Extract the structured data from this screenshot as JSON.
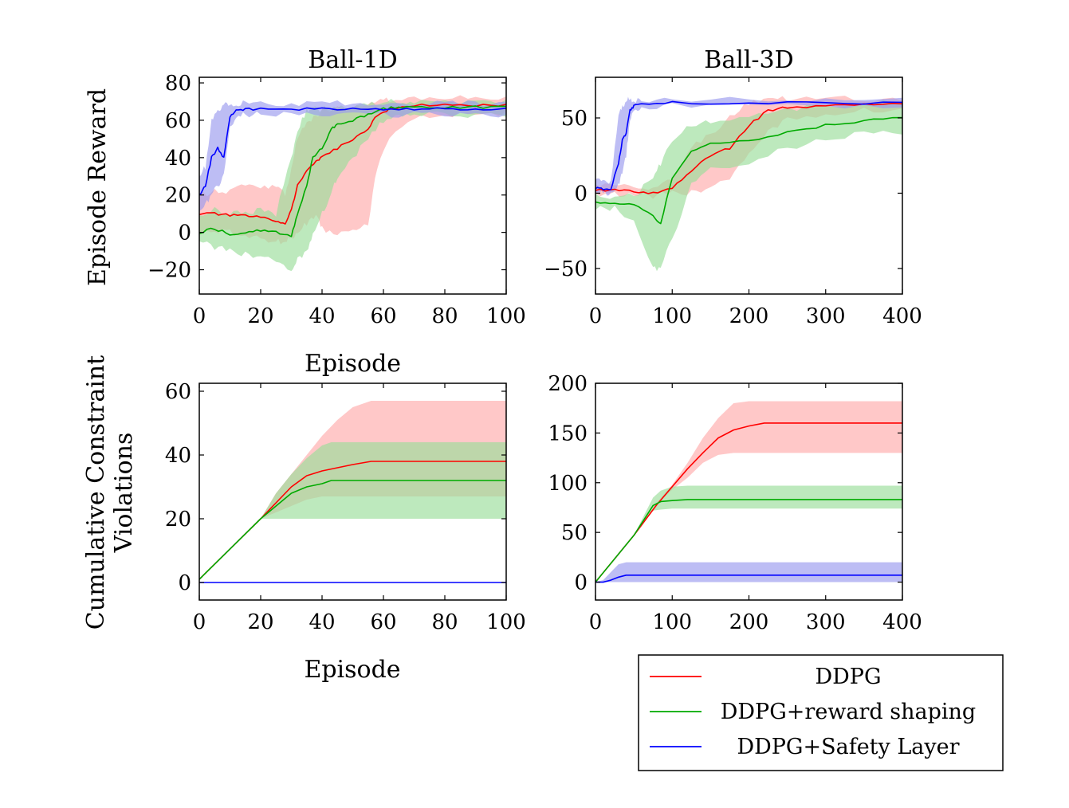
{
  "figure": {
    "ylabel_top": "Episode Reward",
    "ylabel_bottom_line1": "Cumulative Constraint",
    "ylabel_bottom_line2": "Violations",
    "xlabel_top": "Episode",
    "xlabel_bottom": "Episode"
  },
  "colors": {
    "DDPG": "#ff0000",
    "DDPG+reward shaping": "#00aa00",
    "DDPG+Safety Layer": "#0000ff",
    "DDPG_band": "#ffaaaa",
    "DDPG+reward shaping_band": "#99dd99",
    "DDPG+Safety Layer_band": "#9999ee"
  },
  "legend": {
    "placement": "bottom-right",
    "entries": [
      "DDPG",
      "DDPG+reward shaping",
      "DDPG+Safety Layer"
    ]
  },
  "chart_data": [
    {
      "id": "ball1d-reward",
      "type": "line",
      "title": "Ball-1D",
      "xlabel": "",
      "ylabel": "Episode Reward",
      "xlim": [
        0,
        100
      ],
      "ylim": [
        -33,
        83
      ],
      "xticks": [
        0,
        20,
        40,
        60,
        80,
        100
      ],
      "yticks": [
        -20,
        0,
        20,
        40,
        60,
        80
      ],
      "series": [
        {
          "name": "DDPG",
          "x": [
            0,
            5,
            10,
            15,
            20,
            25,
            28,
            30,
            32,
            35,
            38,
            40,
            45,
            50,
            55,
            58,
            62,
            70,
            80,
            90,
            100
          ],
          "y": [
            10,
            10,
            9,
            9,
            8,
            6,
            5,
            12,
            25,
            33,
            38,
            40,
            45,
            50,
            55,
            63,
            66,
            68,
            68,
            68,
            68
          ],
          "band_low": [
            0,
            0,
            0,
            -2,
            -3,
            -5,
            -5,
            -3,
            0,
            5,
            10,
            2,
            0,
            2,
            5,
            35,
            50,
            62,
            63,
            63,
            63
          ],
          "band_high": [
            20,
            22,
            22,
            25,
            25,
            24,
            20,
            35,
            50,
            60,
            62,
            65,
            66,
            67,
            68,
            70,
            71,
            72,
            72,
            72,
            72
          ]
        },
        {
          "name": "DDPG+reward shaping",
          "x": [
            0,
            5,
            10,
            15,
            20,
            25,
            30,
            32,
            35,
            37,
            40,
            43,
            45,
            50,
            55,
            60,
            65,
            70,
            80,
            90,
            100
          ],
          "y": [
            0,
            2,
            -1,
            0,
            1,
            0,
            -2,
            10,
            25,
            40,
            45,
            55,
            58,
            60,
            63,
            66,
            67,
            67,
            67,
            67,
            67
          ],
          "band_low": [
            -5,
            -8,
            -10,
            -12,
            -12,
            -15,
            -22,
            -15,
            -10,
            0,
            10,
            20,
            30,
            40,
            50,
            60,
            62,
            63,
            63,
            63,
            63
          ],
          "band_high": [
            10,
            12,
            10,
            10,
            12,
            10,
            40,
            55,
            65,
            66,
            66,
            66,
            67,
            68,
            69,
            70,
            70,
            70,
            70,
            70,
            70
          ]
        },
        {
          "name": "DDPG+Safety Layer",
          "x": [
            0,
            2,
            4,
            6,
            8,
            10,
            12,
            15,
            20,
            30,
            40,
            50,
            60,
            70,
            80,
            90,
            100
          ],
          "y": [
            20,
            25,
            40,
            45,
            40,
            62,
            65,
            66,
            66,
            66,
            66,
            66,
            66,
            66,
            66,
            66,
            66
          ],
          "band_low": [
            10,
            15,
            20,
            25,
            30,
            55,
            62,
            63,
            63,
            63,
            63,
            63,
            63,
            63,
            63,
            63,
            63
          ],
          "band_high": [
            30,
            35,
            60,
            65,
            68,
            69,
            69,
            69,
            69,
            69,
            69,
            69,
            69,
            69,
            69,
            69,
            69
          ]
        }
      ]
    },
    {
      "id": "ball3d-reward",
      "type": "line",
      "title": "Ball-3D",
      "xlabel": "",
      "ylabel": "",
      "xlim": [
        0,
        400
      ],
      "ylim": [
        -67,
        77
      ],
      "xticks": [
        0,
        100,
        200,
        300,
        400
      ],
      "yticks": [
        -50,
        0,
        50
      ],
      "series": [
        {
          "name": "DDPG",
          "x": [
            0,
            25,
            50,
            75,
            100,
            125,
            150,
            175,
            200,
            225,
            250,
            300,
            350,
            400
          ],
          "y": [
            2,
            2,
            1,
            0,
            3,
            15,
            25,
            30,
            45,
            55,
            57,
            58,
            59,
            59
          ],
          "band_low": [
            0,
            0,
            -2,
            -2,
            0,
            0,
            5,
            10,
            25,
            40,
            50,
            53,
            55,
            55
          ],
          "band_high": [
            5,
            5,
            4,
            4,
            10,
            30,
            40,
            50,
            60,
            62,
            63,
            63,
            63,
            63
          ]
        },
        {
          "name": "DDPG+reward shaping",
          "x": [
            0,
            25,
            50,
            75,
            85,
            100,
            125,
            150,
            200,
            250,
            300,
            350,
            400
          ],
          "y": [
            -6,
            -6,
            -8,
            -15,
            -20,
            10,
            28,
            33,
            35,
            40,
            45,
            48,
            50
          ],
          "band_low": [
            -10,
            -10,
            -20,
            -50,
            -50,
            -30,
            5,
            15,
            20,
            30,
            35,
            40,
            40
          ],
          "band_high": [
            -2,
            -2,
            -2,
            10,
            20,
            35,
            45,
            48,
            50,
            55,
            58,
            60,
            60
          ]
        },
        {
          "name": "DDPG+Safety Layer",
          "x": [
            0,
            10,
            20,
            30,
            35,
            40,
            45,
            50,
            60,
            100,
            200,
            300,
            400
          ],
          "y": [
            3,
            3,
            3,
            20,
            35,
            40,
            55,
            58,
            59,
            60,
            60,
            60,
            60
          ],
          "band_low": [
            0,
            0,
            0,
            5,
            15,
            25,
            50,
            56,
            57,
            58,
            58,
            58,
            58
          ],
          "band_high": [
            8,
            8,
            8,
            50,
            58,
            62,
            62,
            62,
            62,
            62,
            62,
            62,
            62
          ]
        }
      ]
    },
    {
      "id": "ball1d-violations",
      "type": "line",
      "title": "Episode",
      "xlabel": "Episode",
      "ylabel": "Cumulative Constraint Violations",
      "xlim": [
        0,
        100
      ],
      "ylim": [
        -5.5,
        62.5
      ],
      "xticks": [
        0,
        20,
        40,
        60,
        80,
        100
      ],
      "yticks": [
        0,
        20,
        40,
        60
      ],
      "series": [
        {
          "name": "DDPG",
          "x": [
            0,
            20,
            25,
            30,
            35,
            40,
            45,
            50,
            56,
            100
          ],
          "y": [
            1,
            20,
            25,
            30,
            33.5,
            35,
            36,
            37,
            38,
            38
          ],
          "band_low": [
            1,
            20,
            22,
            24,
            26,
            27,
            27,
            27,
            27,
            27
          ],
          "band_high": [
            1,
            20,
            28,
            34,
            40,
            46,
            51,
            55,
            57,
            57
          ]
        },
        {
          "name": "DDPG+reward shaping",
          "x": [
            0,
            20,
            25,
            30,
            35,
            40,
            43,
            100
          ],
          "y": [
            1,
            20,
            24,
            28,
            30,
            31,
            32,
            32
          ],
          "band_low": [
            1,
            20,
            20,
            20,
            20,
            20,
            20,
            20
          ],
          "band_high": [
            1,
            20,
            28,
            34,
            39,
            43,
            44,
            44
          ]
        },
        {
          "name": "DDPG+Safety Layer",
          "x": [
            0,
            100
          ],
          "y": [
            0,
            0
          ],
          "band_low": [
            0,
            0
          ],
          "band_high": [
            0,
            0
          ]
        }
      ]
    },
    {
      "id": "ball3d-violations",
      "type": "line",
      "title": "",
      "xlabel": "",
      "ylabel": "",
      "xlim": [
        0,
        400
      ],
      "ylim": [
        -18,
        200
      ],
      "xticks": [
        0,
        100,
        200,
        300,
        400
      ],
      "yticks": [
        0,
        50,
        100,
        150,
        200
      ],
      "series": [
        {
          "name": "DDPG",
          "x": [
            0,
            50,
            80,
            100,
            120,
            140,
            160,
            180,
            200,
            220,
            400
          ],
          "y": [
            0,
            47,
            78,
            96,
            114,
            130,
            145,
            153,
            157,
            160,
            160
          ],
          "band_low": [
            0,
            47,
            78,
            93,
            105,
            120,
            128,
            130,
            130,
            130,
            130
          ],
          "band_high": [
            0,
            47,
            80,
            98,
            120,
            145,
            165,
            180,
            182,
            182,
            182
          ]
        },
        {
          "name": "DDPG+reward shaping",
          "x": [
            0,
            50,
            75,
            85,
            100,
            120,
            400
          ],
          "y": [
            0,
            47,
            77,
            81,
            82,
            83,
            83
          ],
          "band_low": [
            0,
            47,
            72,
            73,
            74,
            74,
            74
          ],
          "band_high": [
            0,
            47,
            85,
            92,
            96,
            97,
            97
          ]
        },
        {
          "name": "DDPG+Safety Layer",
          "x": [
            0,
            10,
            20,
            30,
            40,
            50,
            400
          ],
          "y": [
            0,
            0,
            2,
            5,
            7,
            7,
            7
          ],
          "band_low": [
            0,
            0,
            0,
            0,
            0,
            0,
            0
          ],
          "band_high": [
            0,
            2,
            10,
            18,
            20,
            20,
            20
          ]
        }
      ]
    }
  ]
}
